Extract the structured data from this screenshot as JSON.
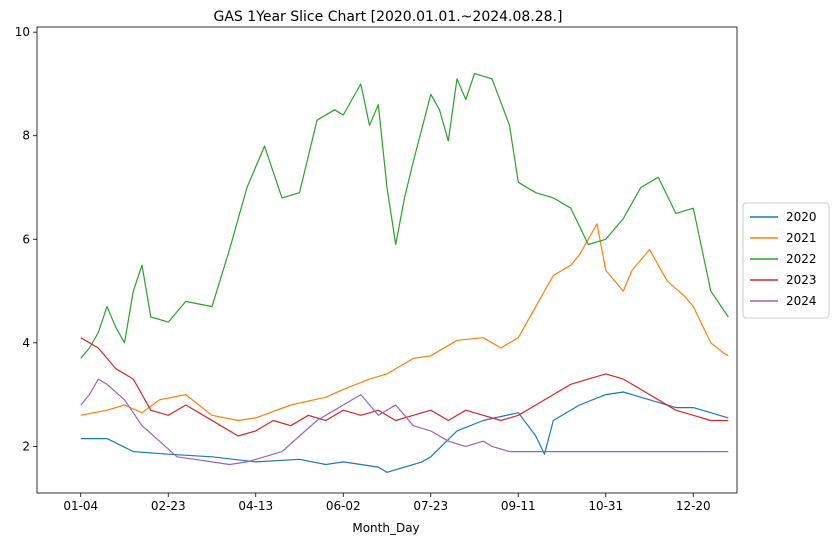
{
  "chart_data": {
    "type": "line",
    "title": "GAS 1Year Slice Chart [2020.01.01.~2024.08.28.]",
    "xlabel": "Month_Day",
    "ylabel": "",
    "x_ticks": [
      "01-04",
      "02-23",
      "04-13",
      "06-02",
      "07-23",
      "09-11",
      "10-31",
      "12-20"
    ],
    "y_ticks": [
      2,
      4,
      6,
      8,
      10
    ],
    "xlim": [
      -0.5,
      7.5
    ],
    "ylim": [
      1.1,
      10.1
    ],
    "legend_position": "right",
    "grid": false,
    "series": [
      {
        "name": "2020",
        "color": "#1f77b4",
        "x": [
          0,
          0.3,
          0.6,
          1.0,
          1.5,
          2.0,
          2.5,
          2.8,
          3.0,
          3.4,
          3.5,
          3.9,
          4.0,
          4.3,
          4.6,
          5.0,
          5.2,
          5.3,
          5.4,
          5.7,
          6.0,
          6.2,
          6.5,
          6.8,
          7.0,
          7.2,
          7.4
        ],
        "values": [
          2.15,
          2.15,
          1.9,
          1.85,
          1.8,
          1.7,
          1.75,
          1.65,
          1.7,
          1.6,
          1.5,
          1.7,
          1.8,
          2.3,
          2.5,
          2.65,
          2.2,
          1.85,
          2.5,
          2.8,
          3.0,
          3.05,
          2.9,
          2.75,
          2.75,
          2.65,
          2.55
        ]
      },
      {
        "name": "2021",
        "color": "#ff7f0e",
        "x": [
          0,
          0.3,
          0.5,
          0.7,
          0.9,
          1.2,
          1.5,
          1.8,
          2.0,
          2.4,
          2.8,
          3.0,
          3.3,
          3.5,
          3.8,
          4.0,
          4.3,
          4.6,
          4.8,
          5.0,
          5.2,
          5.4,
          5.6,
          5.7,
          5.9,
          6.0,
          6.2,
          6.3,
          6.5,
          6.7,
          6.9,
          7.0,
          7.2,
          7.35,
          7.4
        ],
        "values": [
          2.6,
          2.7,
          2.8,
          2.65,
          2.9,
          3.0,
          2.6,
          2.5,
          2.55,
          2.8,
          2.95,
          3.1,
          3.3,
          3.4,
          3.7,
          3.75,
          4.05,
          4.1,
          3.9,
          4.1,
          4.7,
          5.3,
          5.5,
          5.7,
          6.3,
          5.4,
          5.0,
          5.4,
          5.8,
          5.2,
          4.9,
          4.7,
          4.0,
          3.8,
          3.75
        ]
      },
      {
        "name": "2022",
        "color": "#2ca02c",
        "x": [
          0,
          0.1,
          0.2,
          0.3,
          0.4,
          0.5,
          0.55,
          0.6,
          0.7,
          0.8,
          1.0,
          1.2,
          1.5,
          1.7,
          1.9,
          2.1,
          2.3,
          2.5,
          2.7,
          2.9,
          3.0,
          3.1,
          3.2,
          3.3,
          3.4,
          3.5,
          3.6,
          3.7,
          3.8,
          4.0,
          4.1,
          4.2,
          4.3,
          4.4,
          4.5,
          4.7,
          4.9,
          5.0,
          5.2,
          5.4,
          5.6,
          5.8,
          6.0,
          6.2,
          6.4,
          6.6,
          6.8,
          7.0,
          7.2,
          7.4
        ],
        "values": [
          3.7,
          3.9,
          4.2,
          4.7,
          4.3,
          4.0,
          4.5,
          5.0,
          5.5,
          4.5,
          4.4,
          4.8,
          4.7,
          5.8,
          7.0,
          7.8,
          6.8,
          6.9,
          8.3,
          8.5,
          8.4,
          8.7,
          9.0,
          8.2,
          8.6,
          7.0,
          5.9,
          6.8,
          7.5,
          8.8,
          8.5,
          7.9,
          9.1,
          8.7,
          9.2,
          9.1,
          8.2,
          7.1,
          6.9,
          6.8,
          6.6,
          5.9,
          6.0,
          6.4,
          7.0,
          7.2,
          6.5,
          6.6,
          5.0,
          4.5
        ]
      },
      {
        "name": "2023",
        "color": "#d62728",
        "x": [
          0,
          0.2,
          0.4,
          0.6,
          0.8,
          1.0,
          1.2,
          1.4,
          1.6,
          1.8,
          2.0,
          2.2,
          2.4,
          2.6,
          2.8,
          3.0,
          3.2,
          3.4,
          3.6,
          3.8,
          4.0,
          4.2,
          4.4,
          4.6,
          4.8,
          5.0,
          5.2,
          5.4,
          5.6,
          5.8,
          6.0,
          6.2,
          6.4,
          6.6,
          6.8,
          7.0,
          7.2,
          7.4
        ],
        "values": [
          4.1,
          3.9,
          3.5,
          3.3,
          2.7,
          2.6,
          2.8,
          2.6,
          2.4,
          2.2,
          2.3,
          2.5,
          2.4,
          2.6,
          2.5,
          2.7,
          2.6,
          2.7,
          2.5,
          2.6,
          2.7,
          2.5,
          2.7,
          2.6,
          2.5,
          2.6,
          2.8,
          3.0,
          3.2,
          3.3,
          3.4,
          3.3,
          3.1,
          2.9,
          2.7,
          2.6,
          2.5,
          2.5
        ]
      },
      {
        "name": "2024",
        "color": "#9467bd",
        "x": [
          0,
          0.1,
          0.2,
          0.3,
          0.5,
          0.7,
          0.9,
          1.1,
          1.3,
          1.5,
          1.7,
          1.9,
          2.1,
          2.3,
          2.5,
          2.7,
          2.9,
          3.0,
          3.2,
          3.4,
          3.6,
          3.8,
          4.0,
          4.2,
          4.4,
          4.6,
          4.7,
          4.8,
          4.9,
          5.0,
          5.5,
          6.0,
          6.5,
          7.0,
          7.4
        ],
        "values": [
          2.8,
          3.0,
          3.3,
          3.2,
          2.9,
          2.4,
          2.1,
          1.8,
          1.75,
          1.7,
          1.65,
          1.7,
          1.8,
          1.9,
          2.2,
          2.5,
          2.7,
          2.8,
          3.0,
          2.6,
          2.8,
          2.4,
          2.3,
          2.1,
          2.0,
          2.1,
          2.0,
          1.95,
          1.9,
          1.9,
          1.9,
          1.9,
          1.9,
          1.9,
          1.9
        ]
      }
    ]
  }
}
